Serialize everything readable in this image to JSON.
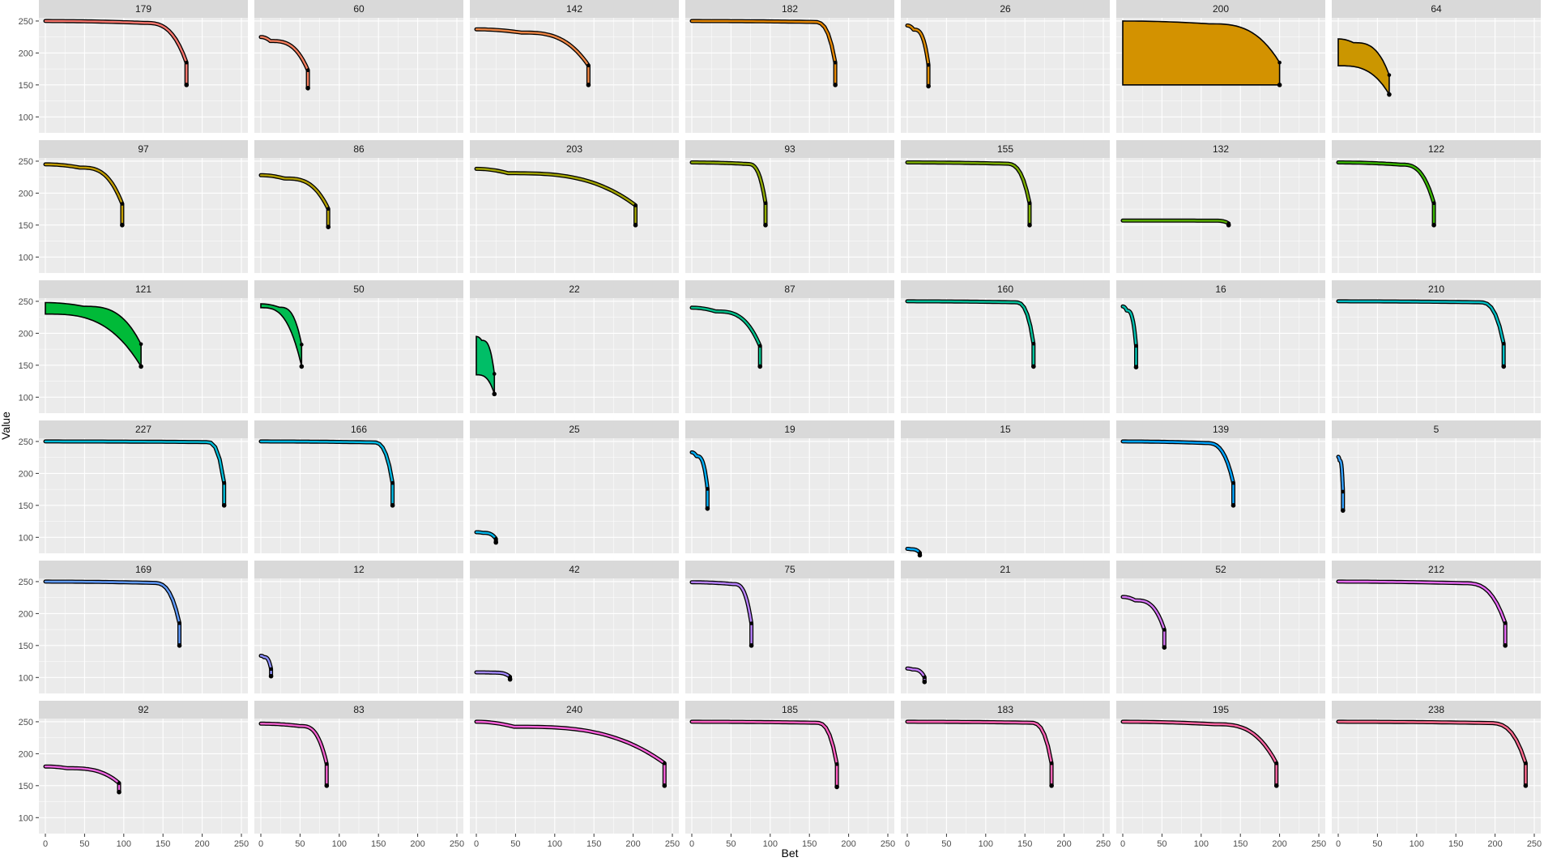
{
  "chart_data": {
    "type": "line",
    "layout": "facet-grid-6x7",
    "xlabel": "Bet",
    "ylabel": "Value",
    "xlim": [
      0,
      250
    ],
    "ylim": [
      75,
      255
    ],
    "x_ticks": [
      0,
      50,
      100,
      150,
      200,
      250
    ],
    "y_ticks": [
      100,
      150,
      200,
      250
    ],
    "x_tick_labels": [
      "0",
      "50",
      "100",
      "150",
      "200",
      "250"
    ],
    "y_tick_labels": [
      "100",
      "150",
      "200",
      "250"
    ],
    "panel_background": "#EBEBEB",
    "strip_background": "#D9D9D9",
    "grid": true,
    "legend": "none",
    "panels": [
      {
        "label": "179",
        "color": "#F8766D",
        "x_end": 180,
        "plateau": 250,
        "end_value": 150,
        "knee": 0.7
      },
      {
        "label": "60",
        "color": "#F47E5E",
        "x_end": 60,
        "plateau": 225,
        "end_value": 145,
        "knee": 0.2
      },
      {
        "label": "142",
        "color": "#EE8645",
        "x_end": 143,
        "plateau": 237,
        "end_value": 150,
        "knee": 0.4
      },
      {
        "label": "182",
        "color": "#E58700",
        "x_end": 183,
        "plateau": 250,
        "end_value": 150,
        "knee": 0.85
      },
      {
        "label": "26",
        "color": "#DE8C00",
        "x_end": 27,
        "plateau": 243,
        "end_value": 148,
        "knee": 0.3
      },
      {
        "label": "200",
        "color": "#D39200",
        "x_end": 200,
        "plateau": 250,
        "end_value": 150,
        "knee": 0.55,
        "band_low": 150
      },
      {
        "label": "64",
        "color": "#CB9600",
        "x_end": 65,
        "plateau": 222,
        "end_value": 135,
        "knee": 0.3,
        "band_low": 180
      },
      {
        "label": "97",
        "color": "#C09B00",
        "x_end": 98,
        "plateau": 245,
        "end_value": 150,
        "knee": 0.45
      },
      {
        "label": "86",
        "color": "#B3A000",
        "x_end": 86,
        "plateau": 228,
        "end_value": 147,
        "knee": 0.35
      },
      {
        "label": "203",
        "color": "#A3A500",
        "x_end": 203,
        "plateau": 238,
        "end_value": 150,
        "knee": 0.2
      },
      {
        "label": "93",
        "color": "#8FAA00",
        "x_end": 94,
        "plateau": 248,
        "end_value": 150,
        "knee": 0.75
      },
      {
        "label": "155",
        "color": "#7CAE00",
        "x_end": 156,
        "plateau": 248,
        "end_value": 150,
        "knee": 0.8
      },
      {
        "label": "132",
        "color": "#5BB300",
        "x_end": 135,
        "plateau": 157,
        "end_value": 150,
        "knee": 0.88
      },
      {
        "label": "122",
        "color": "#39B600",
        "x_end": 122,
        "plateau": 248,
        "end_value": 150,
        "knee": 0.65
      },
      {
        "label": "121",
        "color": "#00BA38",
        "x_end": 122,
        "plateau": 248,
        "end_value": 148,
        "knee": 0.4,
        "band_low": 230
      },
      {
        "label": "50",
        "color": "#00BC51",
        "x_end": 52,
        "plateau": 246,
        "end_value": 148,
        "knee": 0.45,
        "band_low": 240
      },
      {
        "label": "22",
        "color": "#00BE67",
        "x_end": 23,
        "plateau": 195,
        "end_value": 105,
        "knee": 0.3,
        "band_low": 135
      },
      {
        "label": "87",
        "color": "#00C08B",
        "x_end": 87,
        "plateau": 240,
        "end_value": 148,
        "knee": 0.35
      },
      {
        "label": "160",
        "color": "#00C19A",
        "x_end": 161,
        "plateau": 250,
        "end_value": 148,
        "knee": 0.85
      },
      {
        "label": "16",
        "color": "#00C0AF",
        "x_end": 17,
        "plateau": 242,
        "end_value": 147,
        "knee": 0.3
      },
      {
        "label": "210",
        "color": "#00BFC4",
        "x_end": 211,
        "plateau": 250,
        "end_value": 148,
        "knee": 0.85
      },
      {
        "label": "227",
        "color": "#00BCD8",
        "x_end": 228,
        "plateau": 250,
        "end_value": 150,
        "knee": 0.9
      },
      {
        "label": "166",
        "color": "#00B9E3",
        "x_end": 168,
        "plateau": 250,
        "end_value": 150,
        "knee": 0.85
      },
      {
        "label": "25",
        "color": "#00B6EB",
        "x_end": 25,
        "plateau": 108,
        "end_value": 92,
        "knee": 0.35
      },
      {
        "label": "19",
        "color": "#00B0F6",
        "x_end": 20,
        "plateau": 233,
        "end_value": 145,
        "knee": 0.3
      },
      {
        "label": "15",
        "color": "#00ABFD",
        "x_end": 16,
        "plateau": 82,
        "end_value": 72,
        "knee": 0.3
      },
      {
        "label": "139",
        "color": "#00A5FF",
        "x_end": 141,
        "plateau": 250,
        "end_value": 150,
        "knee": 0.75
      },
      {
        "label": "5",
        "color": "#35A2FF",
        "x_end": 6,
        "plateau": 226,
        "end_value": 142,
        "knee": 0.3
      },
      {
        "label": "169",
        "color": "#619CFF",
        "x_end": 171,
        "plateau": 250,
        "end_value": 150,
        "knee": 0.8
      },
      {
        "label": "12",
        "color": "#8F91FF",
        "x_end": 13,
        "plateau": 134,
        "end_value": 102,
        "knee": 0.3
      },
      {
        "label": "42",
        "color": "#A58AFF",
        "x_end": 43,
        "plateau": 108,
        "end_value": 97,
        "knee": 0.55
      },
      {
        "label": "75",
        "color": "#B983FF",
        "x_end": 76,
        "plateau": 249,
        "end_value": 150,
        "knee": 0.7
      },
      {
        "label": "21",
        "color": "#C77CFF",
        "x_end": 22,
        "plateau": 114,
        "end_value": 93,
        "knee": 0.3
      },
      {
        "label": "52",
        "color": "#D675F4",
        "x_end": 53,
        "plateau": 226,
        "end_value": 147,
        "knee": 0.3
      },
      {
        "label": "212",
        "color": "#E76BF3",
        "x_end": 213,
        "plateau": 250,
        "end_value": 150,
        "knee": 0.75
      },
      {
        "label": "92",
        "color": "#EE67E1",
        "x_end": 94,
        "plateau": 180,
        "end_value": 140,
        "knee": 0.3
      },
      {
        "label": "83",
        "color": "#F463D0",
        "x_end": 84,
        "plateau": 247,
        "end_value": 150,
        "knee": 0.6
      },
      {
        "label": "240",
        "color": "#FA62DB",
        "x_end": 240,
        "plateau": 250,
        "end_value": 150,
        "knee": 0.2
      },
      {
        "label": "185",
        "color": "#FF61C3",
        "x_end": 185,
        "plateau": 250,
        "end_value": 148,
        "knee": 0.85
      },
      {
        "label": "183",
        "color": "#FF63B6",
        "x_end": 184,
        "plateau": 250,
        "end_value": 150,
        "knee": 0.85
      },
      {
        "label": "195",
        "color": "#FF67A4",
        "x_end": 196,
        "plateau": 250,
        "end_value": 150,
        "knee": 0.6
      },
      {
        "label": "238",
        "color": "#FF6C90",
        "x_end": 239,
        "plateau": 250,
        "end_value": 150,
        "knee": 0.8
      }
    ]
  }
}
